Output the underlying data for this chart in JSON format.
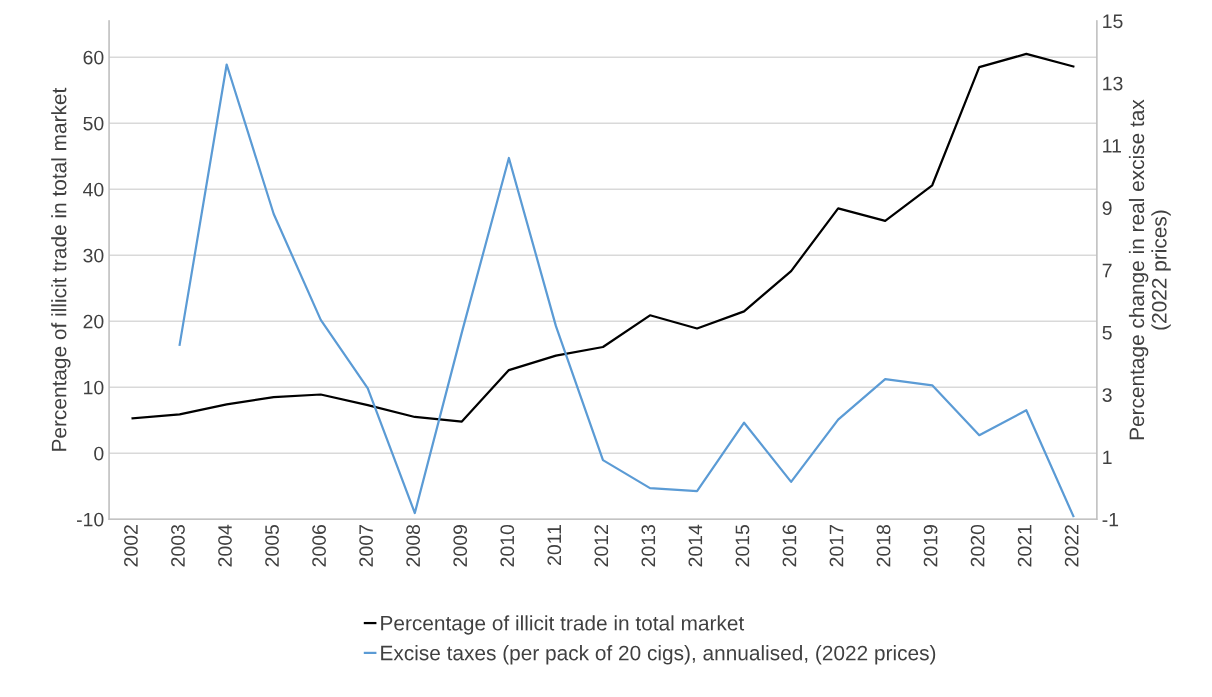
{
  "chart_data": {
    "type": "line",
    "ylabel": "Percentage of illicit trade in total market",
    "y2label": "Percentage change in real excise tax\n(2022 prices)",
    "categories": [
      "2002",
      "2003",
      "2004",
      "2005",
      "2006",
      "2007",
      "2008",
      "2009",
      "2010",
      "2011",
      "2012",
      "2013",
      "2014",
      "2015",
      "2016",
      "2017",
      "2018",
      "2019",
      "2020",
      "2021",
      "2022"
    ],
    "series": [
      {
        "name": "Percentage of illicit trade in total market",
        "color": "#000000",
        "values": [
          5.3,
          5.9,
          7.4,
          8.5,
          8.9,
          7.3,
          5.5,
          4.8,
          12.6,
          14.8,
          16.1,
          20.9,
          18.9,
          21.5,
          27.6,
          37.1,
          35.2,
          40.6,
          58.5,
          60.5,
          58.6
        ]
      },
      {
        "name": "Excise taxes (per pack of 20 cigs), annualised, (2022 prices)",
        "color": "#5b9bd5",
        "axis": "y2",
        "values": [
          null,
          4.6,
          13.6,
          8.8,
          5.4,
          3.2,
          -0.8,
          5.0,
          10.6,
          5.2,
          0.9,
          0.0,
          -0.1,
          2.1,
          0.2,
          2.2,
          3.5,
          3.3,
          1.7,
          2.5,
          -0.9
        ]
      }
    ],
    "ylim": [
      -10,
      65.5
    ],
    "yticks": [
      -10,
      0,
      10,
      20,
      30,
      40,
      50,
      60
    ],
    "y2lim": [
      -1,
      15
    ],
    "y2ticks": [
      -1,
      1,
      3,
      5,
      7,
      9,
      11,
      13,
      15
    ],
    "grid": "y",
    "legend": "bottom",
    "marker": "none",
    "line_style": "solid"
  }
}
